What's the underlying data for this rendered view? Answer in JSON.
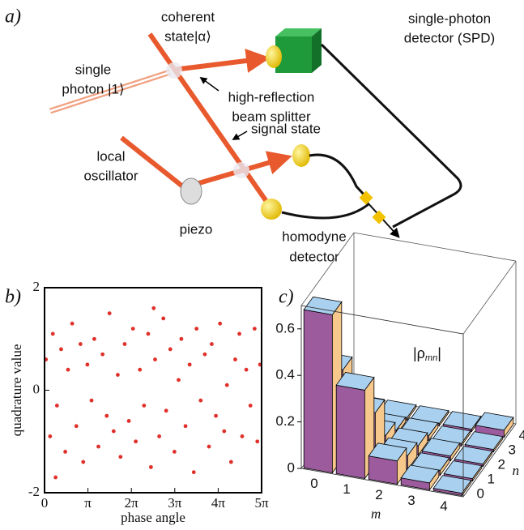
{
  "diagram": {
    "label": "a)",
    "labels": [
      "coherent",
      "state|α⟩",
      "single-photon",
      "detector (SPD)",
      "single",
      "photon |1⟩",
      "high-reflection",
      "beam splitter",
      "signal state",
      "local",
      "oscillator",
      "piezo",
      "homodyne",
      "detector"
    ]
  },
  "chart_data": [
    {
      "type": "scatter",
      "panel_label": "b)",
      "xlabel": "phase angle",
      "ylabel": "quadrature value",
      "color": "#e0302a",
      "x": [
        0.1,
        0.4,
        0.6,
        0.9,
        1.2,
        1.5,
        1.7,
        2.0,
        2.3,
        2.6,
        2.8,
        3.1,
        3.4,
        3.6,
        3.9,
        4.2,
        4.5,
        4.7,
        5.0,
        5.3,
        5.5,
        5.8,
        6.1,
        6.4,
        6.6,
        6.9,
        7.2,
        7.5,
        7.7,
        8.0,
        8.3,
        8.6,
        8.8,
        9.1,
        9.4,
        9.7,
        9.9,
        10.2,
        10.5,
        10.8,
        11.0,
        11.3,
        11.6,
        11.9,
        12.1,
        12.4,
        12.7,
        13.0,
        13.2,
        13.5,
        13.8,
        14.1,
        14.3,
        14.6,
        14.9,
        15.2,
        15.4,
        15.6,
        0.8,
        7.9
      ],
      "values": [
        0.6,
        -0.9,
        1.1,
        -0.3,
        0.8,
        -1.2,
        0.4,
        1.3,
        -0.7,
        0.9,
        -1.4,
        0.5,
        -0.2,
        1.0,
        -1.1,
        0.7,
        -0.5,
        1.5,
        -0.8,
        0.3,
        -1.3,
        0.9,
        -0.6,
        1.2,
        -1.0,
        0.4,
        -0.3,
        1.1,
        -1.5,
        0.6,
        -0.9,
        1.4,
        -0.4,
        0.8,
        -1.2,
        0.2,
        1.0,
        -0.7,
        0.5,
        -1.6,
        1.2,
        -0.2,
        0.7,
        -1.1,
        0.9,
        -0.5,
        1.3,
        -0.8,
        0.1,
        -1.4,
        0.6,
        1.1,
        -0.9,
        0.4,
        -0.3,
        1.2,
        -1.0,
        0.5,
        -1.7,
        1.6
      ],
      "xlim": [
        0,
        15.708
      ],
      "xticks": [
        0,
        {
          "value": 3.1416,
          "label": "π"
        },
        {
          "value": 6.2832,
          "label": "2π"
        },
        {
          "value": 9.4248,
          "label": "3π"
        },
        {
          "value": 12.5664,
          "label": "4π"
        },
        {
          "value": 15.708,
          "label": "5π"
        }
      ],
      "ylim": [
        -2,
        2
      ],
      "yticks": [
        -2,
        0,
        2
      ]
    },
    {
      "type": "bar3d",
      "panel_label": "c)",
      "xlabel": "m",
      "ylabel": "n",
      "annotation": [
        "|ρ",
        "mn",
        "|"
      ],
      "x": [
        0,
        1,
        2,
        3,
        4
      ],
      "y": [
        0,
        1,
        2,
        3,
        4
      ],
      "values": [
        [
          0.68,
          0.38,
          0.1,
          0.03,
          0.01
        ],
        [
          0.38,
          0.22,
          0.06,
          0.02,
          0.01
        ],
        [
          0.1,
          0.06,
          0.04,
          0.02,
          0.01
        ],
        [
          0.03,
          0.02,
          0.02,
          0.01,
          0.01
        ],
        [
          0.01,
          0.01,
          0.01,
          0.01,
          0.03
        ]
      ],
      "zlim": [
        0,
        0.7
      ],
      "zticks": [
        0,
        0.2,
        0.4,
        0.6
      ],
      "top_color": "#aad0ef",
      "front_color": "#9c5b9c",
      "side_color": "#f6c88c"
    }
  ]
}
